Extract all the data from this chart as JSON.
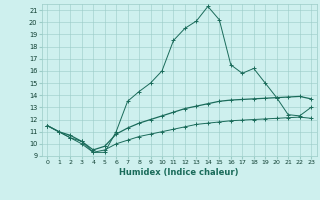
{
  "xlabel": "Humidex (Indice chaleur)",
  "x": [
    0,
    1,
    2,
    3,
    4,
    5,
    6,
    7,
    8,
    9,
    10,
    11,
    12,
    13,
    14,
    15,
    16,
    17,
    18,
    19,
    20,
    21,
    22,
    23
  ],
  "line1": [
    11.5,
    11.0,
    10.5,
    10.2,
    9.3,
    9.3,
    11.0,
    13.5,
    14.3,
    15.0,
    16.0,
    18.5,
    19.5,
    20.1,
    21.3,
    20.2,
    16.5,
    15.8,
    16.2,
    15.0,
    13.8,
    12.4,
    12.3,
    13.0
  ],
  "line2": [
    11.5,
    11.0,
    10.7,
    10.2,
    9.5,
    9.8,
    10.8,
    11.3,
    11.7,
    12.0,
    12.3,
    12.6,
    12.9,
    13.1,
    13.3,
    13.5,
    13.6,
    13.65,
    13.7,
    13.75,
    13.8,
    13.85,
    13.9,
    13.7
  ],
  "line3": [
    11.5,
    11.0,
    10.5,
    10.0,
    9.3,
    9.5,
    10.0,
    10.3,
    10.6,
    10.8,
    11.0,
    11.2,
    11.4,
    11.6,
    11.7,
    11.8,
    11.9,
    11.95,
    12.0,
    12.05,
    12.1,
    12.15,
    12.2,
    12.1
  ],
  "bg_color": "#cef0ee",
  "line_color": "#1a6b5a",
  "grid_color": "#9bccc7",
  "xlim": [
    -0.5,
    23.5
  ],
  "ylim": [
    9.0,
    21.5
  ],
  "yticks": [
    9,
    10,
    11,
    12,
    13,
    14,
    15,
    16,
    17,
    18,
    19,
    20,
    21
  ],
  "xticks": [
    0,
    1,
    2,
    3,
    4,
    5,
    6,
    7,
    8,
    9,
    10,
    11,
    12,
    13,
    14,
    15,
    16,
    17,
    18,
    19,
    20,
    21,
    22,
    23
  ]
}
